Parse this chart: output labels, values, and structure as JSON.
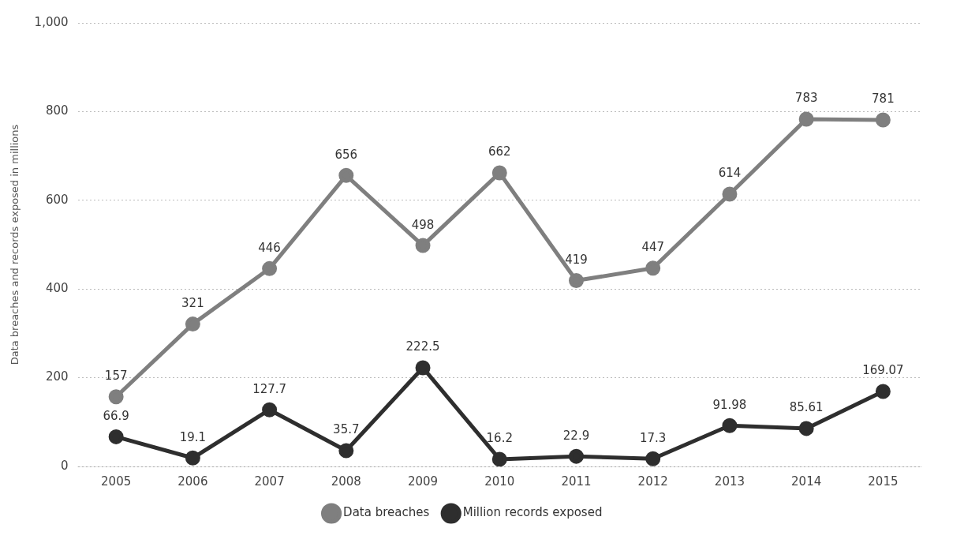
{
  "chart_data": {
    "type": "line",
    "ylabel": "Data breaches and records exposed in millions",
    "categories": [
      "2005",
      "2006",
      "2007",
      "2008",
      "2009",
      "2010",
      "2011",
      "2012",
      "2013",
      "2014",
      "2015"
    ],
    "series": [
      {
        "name": "Data breaches",
        "color": "#7f7f7f",
        "values": [
          157,
          321,
          446,
          656,
          498,
          662,
          419,
          447,
          614,
          783,
          781
        ]
      },
      {
        "name": "Million records exposed",
        "color": "#2e2e2e",
        "values": [
          66.9,
          19.1,
          127.7,
          35.7,
          222.5,
          16.2,
          22.9,
          17.3,
          91.98,
          85.61,
          169.07
        ]
      }
    ],
    "ylim": [
      0,
      1000
    ],
    "yticks": [
      0,
      200,
      400,
      600,
      800,
      {
        "value": 1000,
        "label": "1,000"
      }
    ],
    "grid": "y",
    "legend": "bottom",
    "marker": "circle",
    "line_style": "solid",
    "data_labels": true
  }
}
